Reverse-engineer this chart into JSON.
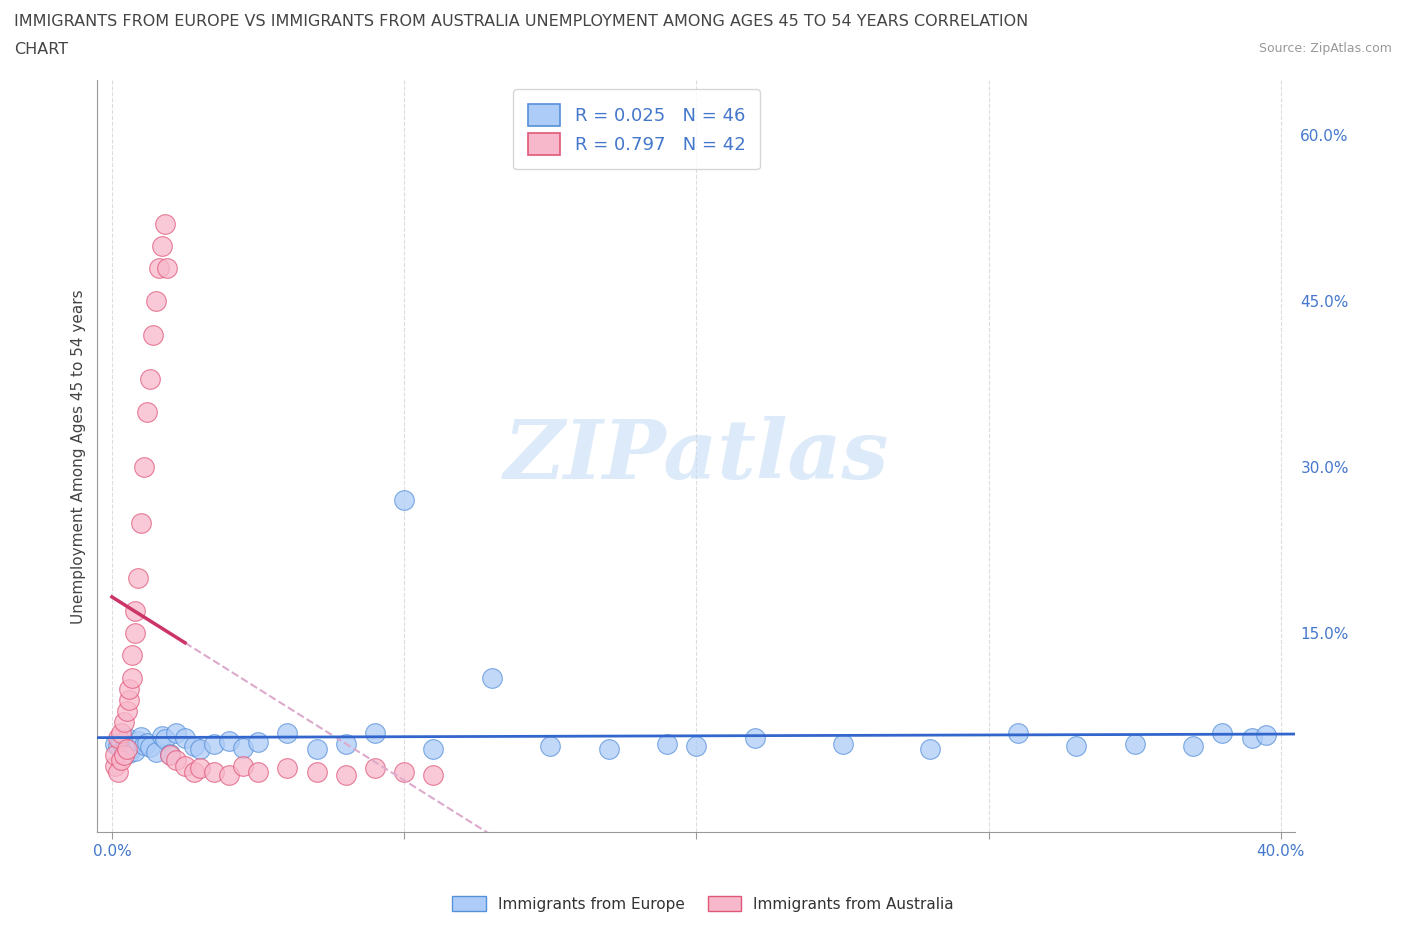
{
  "title_line1": "IMMIGRANTS FROM EUROPE VS IMMIGRANTS FROM AUSTRALIA UNEMPLOYMENT AMONG AGES 45 TO 54 YEARS CORRELATION",
  "title_line2": "CHART",
  "source": "Source: ZipAtlas.com",
  "ylabel": "Unemployment Among Ages 45 to 54 years",
  "legend_europe_R": "0.025",
  "legend_europe_N": "46",
  "legend_australia_R": "0.797",
  "legend_australia_N": "42",
  "europe_face_color": "#aeccf8",
  "europe_edge_color": "#5590d9",
  "australia_face_color": "#f8b8cc",
  "australia_edge_color": "#e05878",
  "europe_trend_color": "#3366cc",
  "australia_trend_color": "#cc3366",
  "australia_dash_color": "#ddaacc",
  "watermark": "ZIPatlas",
  "text_color": "#4477cc",
  "title_color": "#444444",
  "grid_color": "#dddddd",
  "europe_x": [
    0.001,
    0.002,
    0.003,
    0.004,
    0.005,
    0.006,
    0.007,
    0.008,
    0.009,
    0.01,
    0.011,
    0.012,
    0.013,
    0.015,
    0.017,
    0.018,
    0.02,
    0.022,
    0.025,
    0.028,
    0.03,
    0.035,
    0.04,
    0.045,
    0.05,
    0.06,
    0.07,
    0.08,
    0.09,
    0.1,
    0.11,
    0.13,
    0.15,
    0.17,
    0.19,
    0.2,
    0.22,
    0.25,
    0.28,
    0.31,
    0.33,
    0.35,
    0.37,
    0.38,
    0.39,
    0.395
  ],
  "europe_y": [
    0.05,
    0.048,
    0.052,
    0.045,
    0.055,
    0.042,
    0.046,
    0.044,
    0.053,
    0.056,
    0.049,
    0.051,
    0.047,
    0.043,
    0.057,
    0.054,
    0.041,
    0.06,
    0.055,
    0.048,
    0.045,
    0.05,
    0.053,
    0.046,
    0.052,
    0.06,
    0.045,
    0.05,
    0.06,
    0.27,
    0.045,
    0.11,
    0.048,
    0.045,
    0.05,
    0.048,
    0.055,
    0.05,
    0.045,
    0.06,
    0.048,
    0.05,
    0.048,
    0.06,
    0.055,
    0.058
  ],
  "australia_x": [
    0.001,
    0.001,
    0.002,
    0.002,
    0.003,
    0.003,
    0.004,
    0.004,
    0.005,
    0.005,
    0.006,
    0.006,
    0.007,
    0.007,
    0.008,
    0.008,
    0.009,
    0.01,
    0.011,
    0.012,
    0.013,
    0.014,
    0.015,
    0.016,
    0.017,
    0.018,
    0.019,
    0.02,
    0.022,
    0.025,
    0.028,
    0.03,
    0.035,
    0.04,
    0.045,
    0.05,
    0.06,
    0.07,
    0.08,
    0.09,
    0.1,
    0.11
  ],
  "australia_y": [
    0.03,
    0.04,
    0.025,
    0.055,
    0.035,
    0.06,
    0.04,
    0.07,
    0.045,
    0.08,
    0.09,
    0.1,
    0.11,
    0.13,
    0.15,
    0.17,
    0.2,
    0.25,
    0.3,
    0.35,
    0.38,
    0.42,
    0.45,
    0.48,
    0.5,
    0.52,
    0.48,
    0.04,
    0.035,
    0.03,
    0.025,
    0.028,
    0.025,
    0.022,
    0.03,
    0.025,
    0.028,
    0.025,
    0.022,
    0.028,
    0.025,
    0.022
  ],
  "xlim": [
    -0.005,
    0.405
  ],
  "ylim": [
    -0.03,
    0.65
  ],
  "xticks": [
    0.0,
    0.1,
    0.2,
    0.3,
    0.4
  ],
  "yticks": [
    0.15,
    0.3,
    0.45,
    0.6
  ],
  "ytick_labels": [
    "15.0%",
    "30.0%",
    "45.0%",
    "60.0%"
  ]
}
